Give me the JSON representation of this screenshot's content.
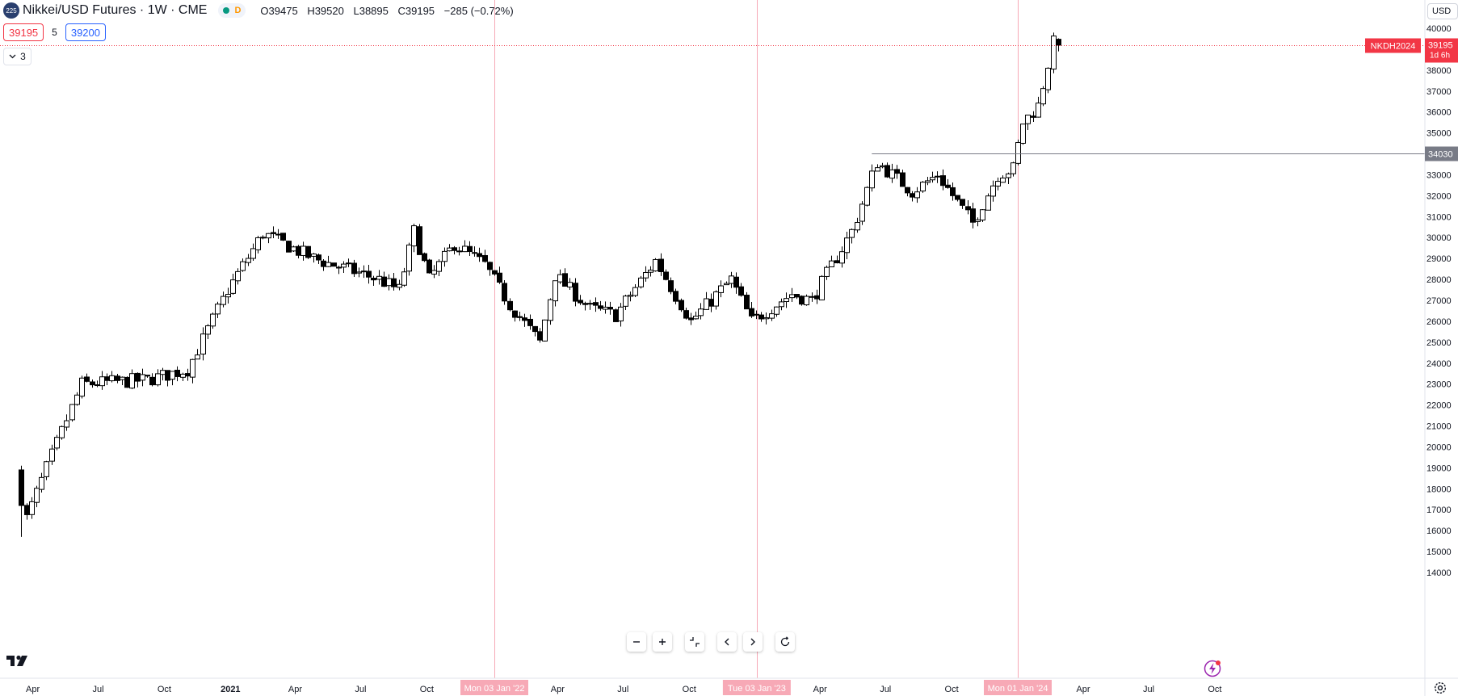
{
  "header": {
    "symbol_logo": "225",
    "title": "Nikkei/USD Futures · 1W · CME",
    "market_status_dot_color": "#089981",
    "delay_badge": "D",
    "ohlc": {
      "open": "O39475",
      "high": "H39520",
      "low": "L38895",
      "close": "C39195",
      "change": "−285 (−0.72%)"
    }
  },
  "trade": {
    "bid": "39195",
    "spread": "5",
    "ask": "39200"
  },
  "indicators_toggle": {
    "count": "3"
  },
  "currency_button": "USD",
  "toolbar": {
    "icons": [
      "zoom-out-icon",
      "zoom-in-icon",
      "reset-scale-icon",
      "scroll-left-icon",
      "scroll-right-icon",
      "reset-chart-icon"
    ]
  },
  "colors": {
    "up": "#ffffff",
    "down": "#000000",
    "last_price": "#f23645",
    "session_line": "#f7a9b6",
    "horizontal_line": "#787b86"
  },
  "chart_data": {
    "type": "candlestick",
    "symbol": "Nikkei/USD Futures",
    "interval": "1W",
    "exchange": "CME",
    "ylim": [
      13500,
      41500
    ],
    "y_ticks": [
      40000,
      39000,
      38000,
      37000,
      36000,
      35000,
      34000,
      33000,
      32000,
      31000,
      30000,
      29000,
      28000,
      27000,
      26000,
      25000,
      24000,
      23000,
      22000,
      21000,
      20000,
      19000,
      18000,
      17000,
      16000,
      15000,
      14000
    ],
    "x_ticks": [
      {
        "label": "Apr",
        "date": "2020-04-01"
      },
      {
        "label": "Jul",
        "date": "2020-07-01"
      },
      {
        "label": "Oct",
        "date": "2020-10-01"
      },
      {
        "label": "2021",
        "date": "2021-01-01",
        "bold": true
      },
      {
        "label": "Apr",
        "date": "2021-04-01"
      },
      {
        "label": "Jul",
        "date": "2021-07-01"
      },
      {
        "label": "Oct",
        "date": "2021-10-01"
      },
      {
        "label": "2022",
        "date": "2022-01-01",
        "bold": true
      },
      {
        "label": "Apr",
        "date": "2022-04-01"
      },
      {
        "label": "Jul",
        "date": "2022-07-01"
      },
      {
        "label": "Oct",
        "date": "2022-10-01"
      },
      {
        "label": "2023",
        "date": "2023-01-01",
        "bold": true
      },
      {
        "label": "Apr",
        "date": "2023-04-01"
      },
      {
        "label": "Jul",
        "date": "2023-07-01"
      },
      {
        "label": "Oct",
        "date": "2023-10-01"
      },
      {
        "label": "2024",
        "date": "2024-01-01",
        "bold": true
      },
      {
        "label": "Apr",
        "date": "2024-04-01"
      },
      {
        "label": "Jul",
        "date": "2024-07-01"
      },
      {
        "label": "Oct",
        "date": "2024-10-01"
      }
    ],
    "session_lines": [
      {
        "date": "2022-01-03",
        "label": "Mon 03 Jan '22"
      },
      {
        "date": "2023-01-03",
        "label": "Tue 03 Jan '23"
      },
      {
        "date": "2024-01-01",
        "label": "Mon 01 Jan '24"
      }
    ],
    "last_price": {
      "value": 39195,
      "symbol_label": "NKDH2024",
      "countdown": "1d 6h"
    },
    "horizontal_line": {
      "value": 34030,
      "start_date": "2023-06-12"
    },
    "anchors": [
      {
        "date": "2020-03-16",
        "value": 16000
      },
      {
        "date": "2020-04-27",
        "value": 19600
      },
      {
        "date": "2020-06-08",
        "value": 23000
      },
      {
        "date": "2020-09-07",
        "value": 23200
      },
      {
        "date": "2020-11-02",
        "value": 23700
      },
      {
        "date": "2020-12-28",
        "value": 27500
      },
      {
        "date": "2021-02-15",
        "value": 30200
      },
      {
        "date": "2021-04-26",
        "value": 29000
      },
      {
        "date": "2021-07-26",
        "value": 28000
      },
      {
        "date": "2021-08-23",
        "value": 27500
      },
      {
        "date": "2021-09-13",
        "value": 30300
      },
      {
        "date": "2021-10-04",
        "value": 28000
      },
      {
        "date": "2021-11-08",
        "value": 29700
      },
      {
        "date": "2021-12-20",
        "value": 28700
      },
      {
        "date": "2022-01-24",
        "value": 26800
      },
      {
        "date": "2022-03-07",
        "value": 25000
      },
      {
        "date": "2022-03-28",
        "value": 28200
      },
      {
        "date": "2022-05-16",
        "value": 26600
      },
      {
        "date": "2022-06-20",
        "value": 26300
      },
      {
        "date": "2022-08-15",
        "value": 28900
      },
      {
        "date": "2022-10-03",
        "value": 26000
      },
      {
        "date": "2022-11-28",
        "value": 28000
      },
      {
        "date": "2022-12-26",
        "value": 26000
      },
      {
        "date": "2023-02-20",
        "value": 27300
      },
      {
        "date": "2023-03-20",
        "value": 27000
      },
      {
        "date": "2023-05-15",
        "value": 30300
      },
      {
        "date": "2023-06-19",
        "value": 33600
      },
      {
        "date": "2023-08-07",
        "value": 32200
      },
      {
        "date": "2023-09-11",
        "value": 33000
      },
      {
        "date": "2023-10-30",
        "value": 30700
      },
      {
        "date": "2023-12-04",
        "value": 33000
      },
      {
        "date": "2023-12-25",
        "value": 33300
      },
      {
        "date": "2024-01-08",
        "value": 35500
      },
      {
        "date": "2024-01-29",
        "value": 36300
      },
      {
        "date": "2024-02-19",
        "value": 39300
      },
      {
        "date": "2024-02-26",
        "value": 39195
      }
    ]
  }
}
